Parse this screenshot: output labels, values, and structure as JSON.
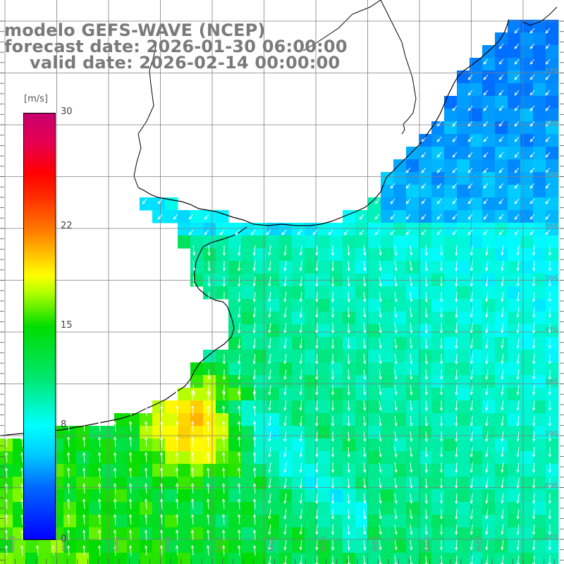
{
  "header": {
    "model_line": "modelo GEFS-WAVE (NCEP)",
    "forecast_line": "forecast date: 2026-01-30 06:00:00",
    "valid_line": "valid date: 2026-02-14 00:00:00"
  },
  "colorbar": {
    "unit": "[m/s]",
    "ticks": [
      {
        "value": 30,
        "label": "30"
      },
      {
        "value": 22,
        "label": "22"
      },
      {
        "value": 15,
        "label": "15"
      },
      {
        "value": 8,
        "label": "8"
      },
      {
        "value": 0,
        "label": "0"
      }
    ],
    "min": 0,
    "max": 30
  },
  "axes": {
    "lat_labels": [
      "32S",
      "33S",
      "34S",
      "35S",
      "36S",
      "37S",
      "38S",
      "39S",
      "40S",
      "41S"
    ],
    "lon_labels": [
      "61W",
      "60W",
      "59W",
      "58W",
      "57W",
      "56W",
      "55W",
      "54W",
      "53W",
      "52W"
    ]
  },
  "colors": {
    "land": "#ffffff",
    "coast": "#000000",
    "grid": "#7f7f7f",
    "arrow": "#ffffff",
    "title": "#7a7a7a"
  }
}
